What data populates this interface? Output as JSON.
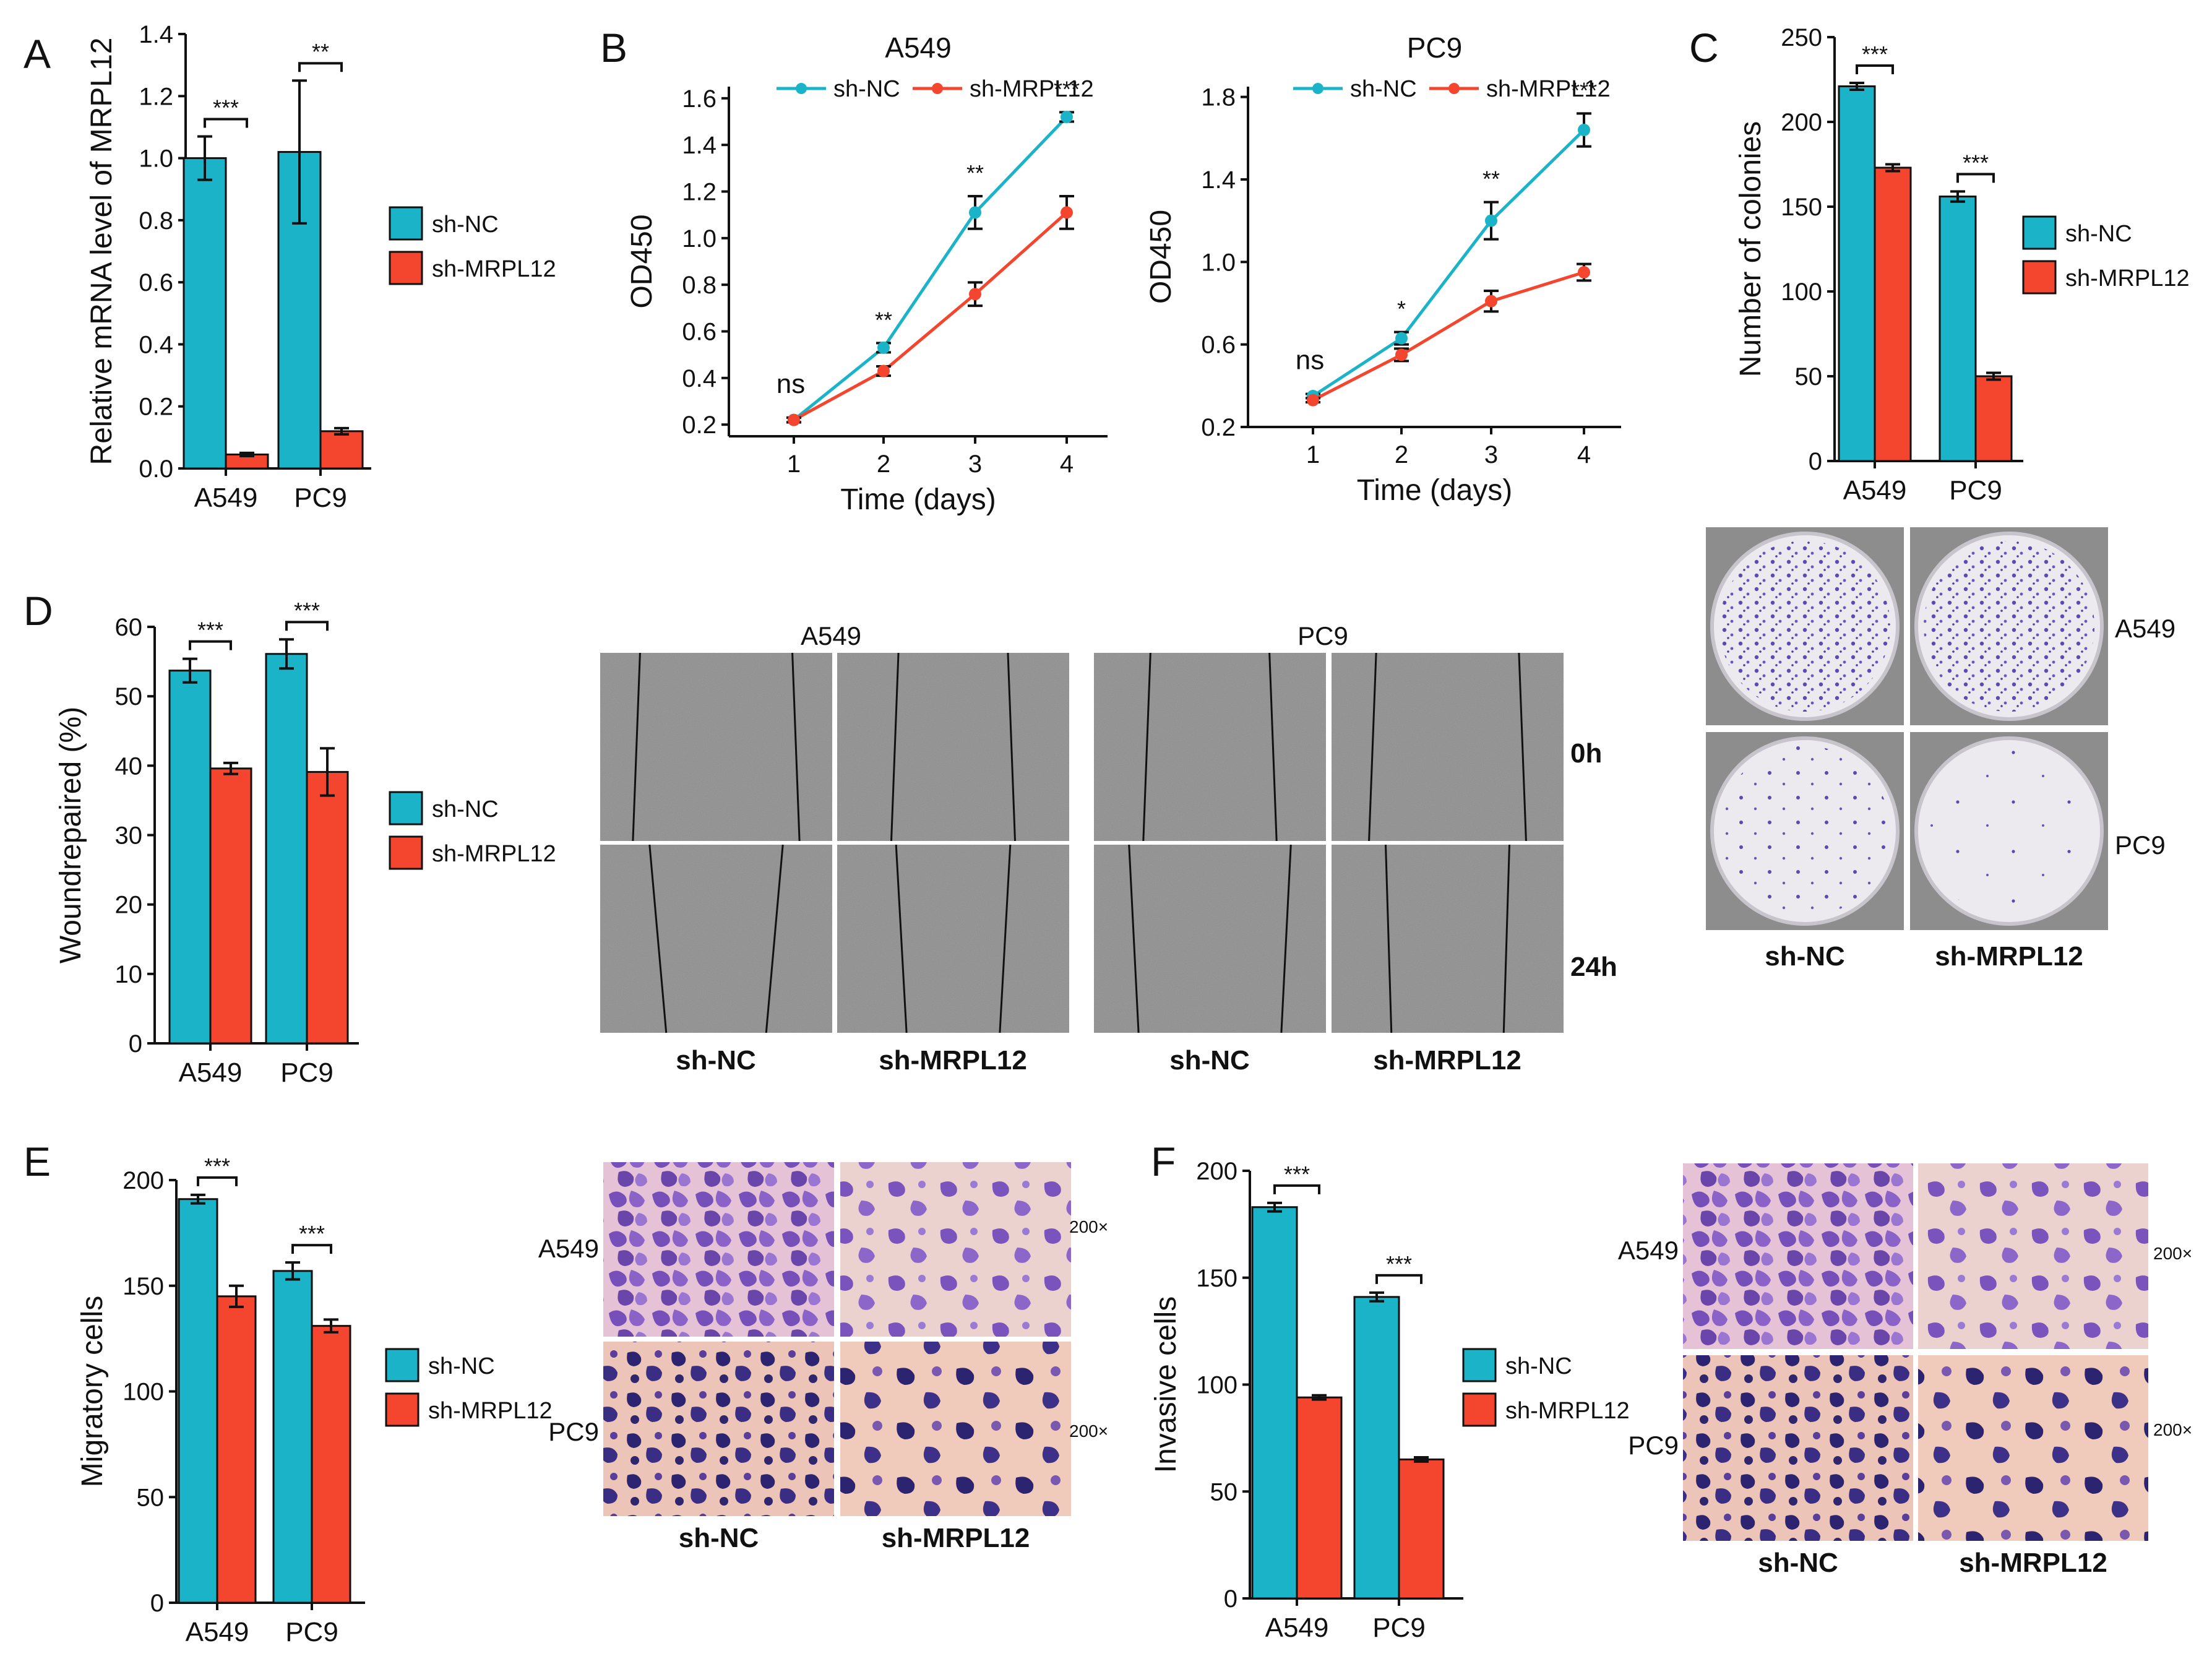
{
  "colors": {
    "sh_nc": "#1ab3c7",
    "sh_mrpl12": "#f4462e"
  },
  "legend": [
    "sh-NC",
    "sh-MRPL12"
  ],
  "chart_data": [
    {
      "id": "A",
      "type": "bar",
      "letter": "A",
      "title": "",
      "xlabel": "",
      "ylabel": "Relative mRNA level of MRPL12",
      "categories": [
        "A549",
        "PC9"
      ],
      "ylim": [
        0,
        1.4
      ],
      "yticks": [
        "0.0",
        "0.2",
        "0.4",
        "0.6",
        "0.8",
        "1.0",
        "1.2",
        "1.4"
      ],
      "series": [
        {
          "name": "sh-NC",
          "values": [
            1.0,
            1.02
          ],
          "errors": [
            0.07,
            0.23
          ]
        },
        {
          "name": "sh-MRPL12",
          "values": [
            0.045,
            0.12
          ],
          "errors": [
            0.005,
            0.01
          ]
        }
      ],
      "significance": [
        "***",
        "**"
      ]
    },
    {
      "id": "B1",
      "type": "line",
      "letter": "B",
      "title": "A549",
      "xlabel": "Time (days)",
      "ylabel": "OD450",
      "x": [
        1,
        2,
        3,
        4
      ],
      "xticks": [
        "1",
        "2",
        "3",
        "4"
      ],
      "ylim": [
        0.15,
        1.65
      ],
      "yticks": [
        "0.2",
        "0.4",
        "0.6",
        "0.8",
        "1.0",
        "1.2",
        "1.4",
        "1.6"
      ],
      "series": [
        {
          "name": "sh-NC",
          "values": [
            0.22,
            0.53,
            1.11,
            1.52
          ],
          "errors": [
            0.01,
            0.02,
            0.07,
            0.02
          ]
        },
        {
          "name": "sh-MRPL12",
          "values": [
            0.22,
            0.43,
            0.76,
            1.11
          ],
          "errors": [
            0.01,
            0.02,
            0.05,
            0.07
          ]
        }
      ],
      "significance": [
        "ns",
        "**",
        "**",
        "***"
      ]
    },
    {
      "id": "B2",
      "type": "line",
      "letter": "",
      "title": "PC9",
      "xlabel": "Time (days)",
      "ylabel": "OD450",
      "x": [
        1,
        2,
        3,
        4
      ],
      "xticks": [
        "1",
        "2",
        "3",
        "4"
      ],
      "ylim": [
        0.2,
        1.85
      ],
      "yticks": [
        "0.2",
        "0.6",
        "1.0",
        "1.4",
        "1.8"
      ],
      "series": [
        {
          "name": "sh-NC",
          "values": [
            0.35,
            0.63,
            1.2,
            1.64
          ],
          "errors": [
            0.01,
            0.03,
            0.09,
            0.08
          ]
        },
        {
          "name": "sh-MRPL12",
          "values": [
            0.33,
            0.55,
            0.81,
            0.95
          ],
          "errors": [
            0.01,
            0.03,
            0.05,
            0.04
          ]
        }
      ],
      "significance": [
        "ns",
        "*",
        "**",
        "***"
      ]
    },
    {
      "id": "C",
      "type": "bar",
      "letter": "C",
      "title": "",
      "xlabel": "",
      "ylabel": "Number of colonies",
      "categories": [
        "A549",
        "PC9"
      ],
      "ylim": [
        0,
        250
      ],
      "yticks": [
        "0",
        "50",
        "100",
        "150",
        "200",
        "250"
      ],
      "series": [
        {
          "name": "sh-NC",
          "values": [
            221,
            156
          ],
          "errors": [
            2,
            3
          ]
        },
        {
          "name": "sh-MRPL12",
          "values": [
            173,
            50
          ],
          "errors": [
            2,
            2
          ]
        }
      ],
      "significance": [
        "***",
        "***"
      ]
    },
    {
      "id": "D",
      "type": "bar",
      "letter": "D",
      "title": "",
      "xlabel": "",
      "ylabel": "Woundrepaired (%)",
      "categories": [
        "A549",
        "PC9"
      ],
      "ylim": [
        0,
        60
      ],
      "yticks": [
        "0",
        "10",
        "20",
        "30",
        "40",
        "50",
        "60"
      ],
      "series": [
        {
          "name": "sh-NC",
          "values": [
            53.7,
            56.1
          ],
          "errors": [
            1.7,
            2.1
          ]
        },
        {
          "name": "sh-MRPL12",
          "values": [
            39.6,
            39.1
          ],
          "errors": [
            0.8,
            3.4
          ]
        }
      ],
      "significance": [
        "***",
        "***"
      ]
    },
    {
      "id": "E",
      "type": "bar",
      "letter": "E",
      "title": "",
      "xlabel": "",
      "ylabel": "Migratory cells",
      "categories": [
        "A549",
        "PC9"
      ],
      "ylim": [
        0,
        200
      ],
      "yticks": [
        "0",
        "50",
        "100",
        "150",
        "200"
      ],
      "series": [
        {
          "name": "sh-NC",
          "values": [
            191,
            157
          ],
          "errors": [
            2,
            4
          ]
        },
        {
          "name": "sh-MRPL12",
          "values": [
            145,
            131
          ],
          "errors": [
            5,
            3
          ]
        }
      ],
      "significance": [
        "***",
        "***"
      ]
    },
    {
      "id": "F",
      "type": "bar",
      "letter": "F",
      "title": "",
      "xlabel": "",
      "ylabel": "Invasive cells",
      "categories": [
        "A549",
        "PC9"
      ],
      "ylim": [
        0,
        200
      ],
      "yticks": [
        "0",
        "50",
        "100",
        "150",
        "200"
      ],
      "series": [
        {
          "name": "sh-NC",
          "values": [
            183,
            141
          ],
          "errors": [
            2,
            2
          ]
        },
        {
          "name": "sh-MRPL12",
          "values": [
            94,
            65
          ],
          "errors": [
            1,
            1
          ]
        }
      ],
      "significance": [
        "***",
        "***"
      ]
    }
  ],
  "images": {
    "C": {
      "rows": [
        "A549",
        "PC9"
      ],
      "cols": [
        "sh-NC",
        "sh-MRPL12"
      ]
    },
    "D": {
      "groups": [
        "A549",
        "PC9"
      ],
      "times": [
        "0h",
        "24h"
      ],
      "cols": [
        "sh-NC",
        "sh-MRPL12",
        "sh-NC",
        "sh-MRPL12"
      ]
    },
    "E": {
      "rows": [
        "A549",
        "PC9"
      ],
      "cols": [
        "sh-NC",
        "sh-MRPL12"
      ],
      "magnification": "200×"
    },
    "F": {
      "rows": [
        "A549",
        "PC9"
      ],
      "cols": [
        "sh-NC",
        "sh-MRPL12"
      ],
      "magnification": "200×"
    }
  }
}
